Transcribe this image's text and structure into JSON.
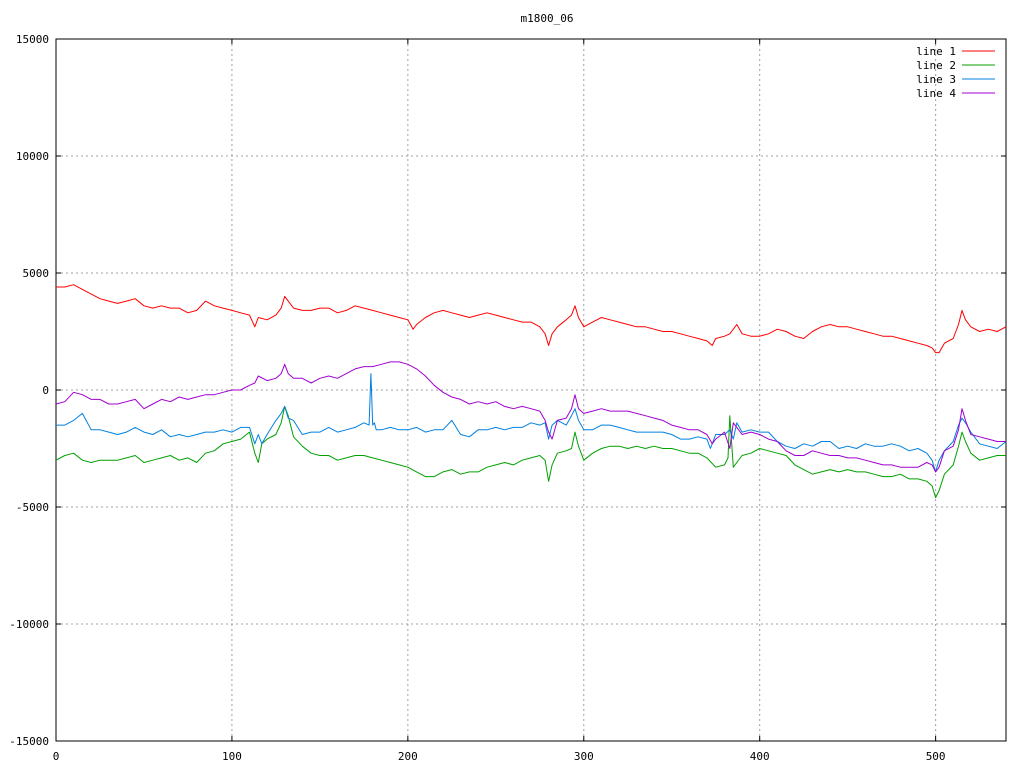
{
  "chart_data": {
    "type": "line",
    "title": "m1800_06",
    "xlabel": "",
    "ylabel": "",
    "xlim": [
      0,
      540
    ],
    "ylim": [
      -15000,
      15000
    ],
    "xticks": [
      0,
      100,
      200,
      300,
      400,
      500
    ],
    "yticks": [
      -15000,
      -10000,
      -5000,
      0,
      5000,
      10000,
      15000
    ],
    "grid": true,
    "legend_position": "top-right",
    "series": [
      {
        "name": "line 1",
        "color": "#ff0000",
        "x": [
          0,
          5,
          10,
          15,
          20,
          25,
          30,
          35,
          40,
          45,
          50,
          55,
          60,
          65,
          70,
          75,
          80,
          85,
          90,
          95,
          100,
          105,
          110,
          113,
          115,
          120,
          125,
          128,
          130,
          132,
          135,
          140,
          145,
          150,
          155,
          160,
          165,
          170,
          175,
          180,
          185,
          190,
          195,
          200,
          203,
          205,
          210,
          215,
          220,
          225,
          230,
          235,
          240,
          245,
          250,
          255,
          260,
          265,
          270,
          275,
          278,
          280,
          282,
          285,
          290,
          293,
          295,
          297,
          300,
          305,
          310,
          315,
          320,
          325,
          330,
          335,
          340,
          345,
          350,
          355,
          360,
          365,
          370,
          373,
          375,
          380,
          383,
          385,
          387,
          390,
          395,
          400,
          405,
          410,
          415,
          420,
          425,
          430,
          435,
          440,
          445,
          450,
          455,
          460,
          465,
          470,
          475,
          480,
          485,
          490,
          495,
          498,
          500,
          502,
          505,
          510,
          513,
          515,
          517,
          520,
          525,
          530,
          535,
          540
        ],
        "values": [
          4400,
          4400,
          4500,
          4300,
          4100,
          3900,
          3800,
          3700,
          3800,
          3900,
          3600,
          3500,
          3600,
          3500,
          3500,
          3300,
          3400,
          3800,
          3600,
          3500,
          3400,
          3300,
          3200,
          2700,
          3100,
          3000,
          3200,
          3500,
          4000,
          3800,
          3500,
          3400,
          3400,
          3500,
          3500,
          3300,
          3400,
          3600,
          3500,
          3400,
          3300,
          3200,
          3100,
          3000,
          2600,
          2800,
          3100,
          3300,
          3400,
          3300,
          3200,
          3100,
          3200,
          3300,
          3200,
          3100,
          3000,
          2900,
          2900,
          2700,
          2400,
          1900,
          2400,
          2700,
          3000,
          3200,
          3600,
          3100,
          2700,
          2900,
          3100,
          3000,
          2900,
          2800,
          2700,
          2700,
          2600,
          2500,
          2500,
          2400,
          2300,
          2200,
          2100,
          1900,
          2200,
          2300,
          2400,
          2600,
          2800,
          2400,
          2300,
          2300,
          2400,
          2600,
          2500,
          2300,
          2200,
          2500,
          2700,
          2800,
          2700,
          2700,
          2600,
          2500,
          2400,
          2300,
          2300,
          2200,
          2100,
          2000,
          1900,
          1800,
          1600,
          1600,
          2000,
          2200,
          2800,
          3400,
          3000,
          2700,
          2500,
          2600,
          2500,
          2700
        ]
      },
      {
        "name": "line 2",
        "color": "#00a000",
        "x": [
          0,
          5,
          10,
          15,
          20,
          25,
          30,
          35,
          40,
          45,
          50,
          55,
          60,
          65,
          70,
          75,
          80,
          85,
          90,
          95,
          100,
          105,
          110,
          113,
          115,
          117,
          120,
          125,
          128,
          130,
          132,
          135,
          140,
          145,
          150,
          155,
          160,
          165,
          170,
          175,
          180,
          185,
          190,
          195,
          200,
          205,
          210,
          215,
          220,
          225,
          230,
          235,
          240,
          245,
          250,
          255,
          260,
          265,
          270,
          275,
          278,
          280,
          282,
          285,
          290,
          293,
          295,
          297,
          300,
          305,
          310,
          315,
          320,
          325,
          330,
          335,
          340,
          345,
          350,
          355,
          360,
          365,
          370,
          375,
          380,
          382,
          383,
          385,
          387,
          390,
          395,
          400,
          405,
          410,
          415,
          420,
          425,
          430,
          435,
          440,
          445,
          450,
          455,
          460,
          465,
          470,
          475,
          480,
          485,
          490,
          495,
          498,
          500,
          502,
          505,
          510,
          513,
          515,
          517,
          520,
          525,
          530,
          535,
          540
        ],
        "values": [
          -3000,
          -2800,
          -2700,
          -3000,
          -3100,
          -3000,
          -3000,
          -3000,
          -2900,
          -2800,
          -3100,
          -3000,
          -2900,
          -2800,
          -3000,
          -2900,
          -3100,
          -2700,
          -2600,
          -2300,
          -2200,
          -2100,
          -1800,
          -2700,
          -3100,
          -2300,
          -2100,
          -1900,
          -1400,
          -700,
          -1100,
          -2000,
          -2400,
          -2700,
          -2800,
          -2800,
          -3000,
          -2900,
          -2800,
          -2800,
          -2900,
          -3000,
          -3100,
          -3200,
          -3300,
          -3500,
          -3700,
          -3700,
          -3500,
          -3400,
          -3600,
          -3500,
          -3500,
          -3300,
          -3200,
          -3100,
          -3200,
          -3000,
          -2900,
          -2800,
          -3000,
          -3900,
          -3200,
          -2700,
          -2600,
          -2500,
          -1800,
          -2400,
          -3000,
          -2700,
          -2500,
          -2400,
          -2400,
          -2500,
          -2400,
          -2500,
          -2400,
          -2500,
          -2500,
          -2600,
          -2700,
          -2700,
          -2900,
          -3300,
          -3200,
          -2900,
          -1100,
          -3300,
          -3100,
          -2800,
          -2700,
          -2500,
          -2600,
          -2700,
          -2800,
          -3200,
          -3400,
          -3600,
          -3500,
          -3400,
          -3500,
          -3400,
          -3500,
          -3500,
          -3600,
          -3700,
          -3700,
          -3600,
          -3800,
          -3800,
          -3900,
          -4100,
          -4600,
          -4300,
          -3600,
          -3200,
          -2400,
          -1800,
          -2200,
          -2700,
          -3000,
          -2900,
          -2800,
          -2800
        ]
      },
      {
        "name": "line 3",
        "color": "#0080e0",
        "x": [
          0,
          5,
          10,
          15,
          20,
          25,
          30,
          35,
          40,
          45,
          50,
          55,
          60,
          65,
          70,
          75,
          80,
          85,
          90,
          95,
          100,
          105,
          110,
          113,
          115,
          117,
          120,
          125,
          128,
          130,
          132,
          135,
          140,
          145,
          150,
          155,
          160,
          165,
          170,
          175,
          178,
          179,
          180,
          181,
          182,
          185,
          190,
          195,
          200,
          205,
          210,
          215,
          220,
          225,
          230,
          235,
          240,
          245,
          250,
          255,
          260,
          265,
          270,
          275,
          278,
          280,
          282,
          285,
          290,
          293,
          295,
          297,
          300,
          305,
          310,
          315,
          320,
          325,
          330,
          335,
          340,
          345,
          350,
          355,
          360,
          365,
          370,
          372,
          375,
          380,
          383,
          385,
          387,
          390,
          395,
          400,
          405,
          410,
          415,
          420,
          425,
          430,
          435,
          440,
          445,
          450,
          455,
          460,
          465,
          470,
          475,
          480,
          485,
          490,
          495,
          498,
          500,
          502,
          505,
          510,
          513,
          515,
          517,
          520,
          525,
          530,
          535,
          540
        ],
        "values": [
          -1500,
          -1500,
          -1300,
          -1000,
          -1700,
          -1700,
          -1800,
          -1900,
          -1800,
          -1600,
          -1800,
          -1900,
          -1700,
          -2000,
          -1900,
          -2000,
          -1900,
          -1800,
          -1800,
          -1700,
          -1800,
          -1600,
          -1600,
          -2300,
          -1900,
          -2300,
          -1900,
          -1300,
          -1000,
          -700,
          -1200,
          -1300,
          -1900,
          -1800,
          -1800,
          -1600,
          -1800,
          -1700,
          -1600,
          -1400,
          -1500,
          700,
          -1500,
          -1400,
          -1700,
          -1700,
          -1600,
          -1700,
          -1700,
          -1600,
          -1800,
          -1700,
          -1700,
          -1300,
          -1900,
          -2000,
          -1700,
          -1700,
          -1600,
          -1700,
          -1600,
          -1600,
          -1400,
          -1500,
          -1400,
          -2100,
          -1500,
          -1300,
          -1500,
          -1100,
          -800,
          -1300,
          -1700,
          -1700,
          -1500,
          -1500,
          -1600,
          -1700,
          -1800,
          -1800,
          -1800,
          -1800,
          -1900,
          -2100,
          -2100,
          -2000,
          -2100,
          -2500,
          -1900,
          -1900,
          -1700,
          -2100,
          -1400,
          -1800,
          -1700,
          -1800,
          -1800,
          -2200,
          -2400,
          -2500,
          -2300,
          -2400,
          -2200,
          -2200,
          -2500,
          -2400,
          -2500,
          -2300,
          -2400,
          -2400,
          -2300,
          -2400,
          -2600,
          -2500,
          -2700,
          -3000,
          -3500,
          -3000,
          -2600,
          -2200,
          -1500,
          -1200,
          -1400,
          -1800,
          -2300,
          -2400,
          -2500,
          -2200
        ]
      },
      {
        "name": "line 4",
        "color": "#a000d0",
        "x": [
          0,
          5,
          10,
          15,
          20,
          25,
          30,
          35,
          40,
          45,
          50,
          55,
          60,
          65,
          70,
          75,
          80,
          85,
          90,
          95,
          100,
          105,
          110,
          113,
          115,
          120,
          125,
          128,
          130,
          132,
          135,
          140,
          145,
          150,
          155,
          160,
          165,
          170,
          175,
          180,
          185,
          190,
          195,
          200,
          205,
          210,
          215,
          220,
          225,
          230,
          235,
          240,
          245,
          250,
          255,
          260,
          265,
          270,
          275,
          278,
          280,
          282,
          285,
          290,
          293,
          295,
          297,
          300,
          305,
          310,
          315,
          320,
          325,
          330,
          335,
          340,
          345,
          350,
          355,
          360,
          365,
          370,
          373,
          375,
          380,
          383,
          385,
          387,
          390,
          395,
          400,
          405,
          410,
          415,
          420,
          425,
          430,
          435,
          440,
          445,
          450,
          455,
          460,
          465,
          470,
          475,
          480,
          485,
          490,
          495,
          498,
          500,
          502,
          505,
          510,
          513,
          515,
          517,
          520,
          525,
          530,
          535,
          540
        ],
        "values": [
          -600,
          -500,
          -100,
          -200,
          -400,
          -400,
          -600,
          -600,
          -500,
          -400,
          -800,
          -600,
          -400,
          -500,
          -300,
          -400,
          -300,
          -200,
          -200,
          -100,
          0,
          0,
          200,
          300,
          600,
          400,
          500,
          700,
          1100,
          700,
          500,
          500,
          300,
          500,
          600,
          500,
          700,
          900,
          1000,
          1000,
          1100,
          1200,
          1200,
          1100,
          900,
          600,
          200,
          -100,
          -300,
          -400,
          -600,
          -500,
          -600,
          -500,
          -700,
          -800,
          -700,
          -800,
          -900,
          -1300,
          -1800,
          -2100,
          -1300,
          -1200,
          -800,
          -200,
          -800,
          -1000,
          -900,
          -800,
          -900,
          -900,
          -900,
          -1000,
          -1100,
          -1200,
          -1300,
          -1500,
          -1600,
          -1700,
          -1700,
          -1900,
          -2300,
          -2100,
          -1800,
          -2500,
          -1400,
          -1600,
          -1900,
          -1800,
          -1900,
          -2100,
          -2200,
          -2600,
          -2800,
          -2800,
          -2600,
          -2700,
          -2800,
          -2800,
          -2900,
          -2900,
          -3000,
          -3100,
          -3200,
          -3200,
          -3300,
          -3300,
          -3300,
          -3100,
          -3200,
          -3500,
          -3300,
          -2600,
          -2400,
          -1700,
          -800,
          -1300,
          -1900,
          -2000,
          -2100,
          -2200,
          -2200
        ]
      }
    ]
  }
}
